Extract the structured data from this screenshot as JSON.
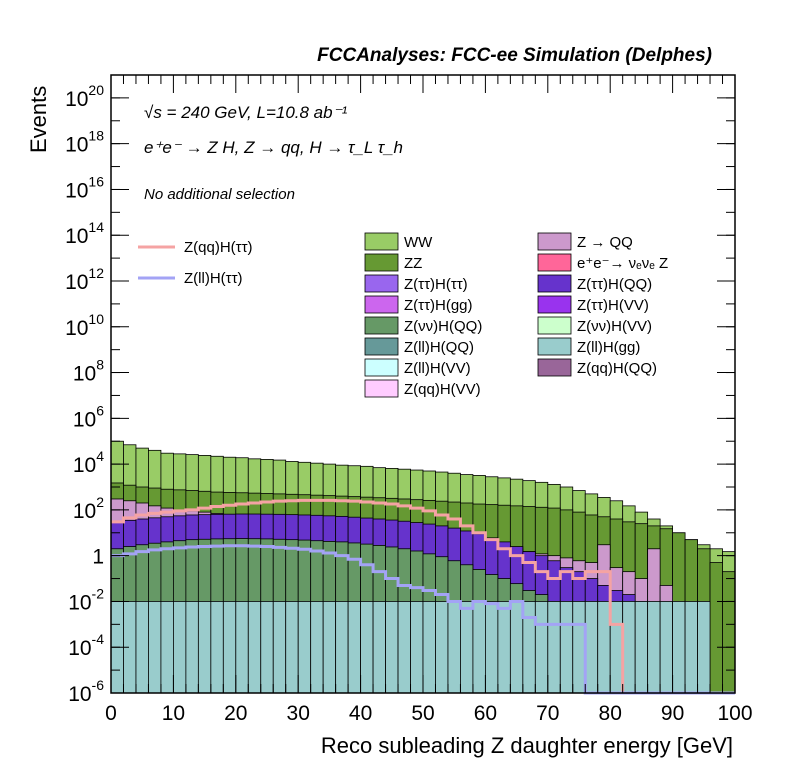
{
  "chart_data": {
    "type": "histogram-stacked",
    "title": "FCCAnalyses: FCC-ee Simulation (Delphes)",
    "annotations": {
      "energy": "√s = 240 GeV, L=10.8 ab⁻¹",
      "process": "e⁺e⁻ → Z H, Z → qq, H → τ_L τ_h",
      "selection": "No additional selection"
    },
    "xlabel": "Reco subleading Z daughter energy [GeV]",
    "ylabel": "Events",
    "xlim": [
      0,
      100
    ],
    "ylim": [
      1e-06,
      1e+21
    ],
    "yscale": "log",
    "x_ticks": [
      "0",
      "10",
      "20",
      "30",
      "40",
      "50",
      "60",
      "70",
      "80",
      "90",
      "100"
    ],
    "y_ticks": [
      {
        "base": "10",
        "exp": "-6"
      },
      {
        "base": "10",
        "exp": "-4"
      },
      {
        "base": "10",
        "exp": "-2"
      },
      {
        "base": "1",
        "exp": ""
      },
      {
        "base": "10",
        "exp": "2"
      },
      {
        "base": "10",
        "exp": "4"
      },
      {
        "base": "10",
        "exp": "6"
      },
      {
        "base": "10",
        "exp": "8"
      },
      {
        "base": "10",
        "exp": "10"
      },
      {
        "base": "10",
        "exp": "12"
      },
      {
        "base": "10",
        "exp": "14"
      },
      {
        "base": "10",
        "exp": "16"
      },
      {
        "base": "10",
        "exp": "18"
      },
      {
        "base": "10",
        "exp": "20"
      }
    ],
    "bin_width": 2,
    "stack_totals": {
      "WW": [
        100000,
        70000,
        50000,
        40000,
        30000,
        28000,
        26000,
        24000,
        22000,
        20000,
        19000,
        17000,
        16000,
        15000,
        13000,
        12000,
        11000,
        10000,
        9000,
        8500,
        8000,
        7000,
        6500,
        6000,
        5500,
        5000,
        4500,
        4000,
        3500,
        3200,
        2800,
        2500,
        2200,
        1900,
        1600,
        1300,
        1000,
        700,
        500,
        350,
        250,
        150,
        80,
        40,
        20,
        10,
        5,
        3,
        2,
        1.5
      ],
      "ZZ": [
        1500,
        1200,
        1000,
        900,
        800,
        750,
        700,
        650,
        600,
        580,
        560,
        540,
        520,
        500,
        480,
        460,
        440,
        420,
        400,
        380,
        360,
        340,
        320,
        300,
        280,
        260,
        240,
        220,
        200,
        180,
        170,
        160,
        150,
        140,
        130,
        120,
        100,
        80,
        60,
        50,
        40,
        30,
        25,
        20,
        15,
        10,
        5,
        2,
        0.5,
        0.2
      ],
      "Z → QQ": [
        300,
        250,
        200,
        150,
        120,
        100,
        90,
        80,
        70,
        60,
        55,
        50,
        45,
        40,
        38,
        35,
        32,
        30,
        28,
        25,
        22,
        20,
        18,
        15,
        12,
        10,
        8,
        6,
        5,
        4,
        3,
        2.5,
        2,
        1.5,
        1.2,
        1,
        0.8,
        0.6,
        0.5,
        3,
        0.3,
        0.2,
        0.1,
        2,
        0.05,
        0,
        0,
        0,
        0,
        0
      ],
      "Z(ττ)H(QQ)": [
        30,
        35,
        40,
        45,
        50,
        55,
        60,
        62,
        64,
        65,
        66,
        66,
        65,
        64,
        62,
        60,
        58,
        55,
        52,
        48,
        44,
        40,
        36,
        32,
        28,
        24,
        20,
        16,
        12,
        9,
        6,
        4,
        2.5,
        1.5,
        1,
        0.6,
        0.3,
        0.2,
        0.1,
        0.05,
        0.03,
        0.02,
        0.01,
        0.005,
        0,
        0,
        0,
        0,
        0,
        0
      ],
      "Z(νν)H(QQ)": [
        2,
        2.5,
        3,
        3.5,
        4,
        4.5,
        5,
        5.2,
        5.4,
        5.5,
        5.6,
        5.5,
        5.4,
        5.2,
        5,
        4.8,
        4.5,
        4.2,
        4,
        3.6,
        3.2,
        2.8,
        2.4,
        2,
        1.6,
        1.2,
        0.9,
        0.6,
        0.4,
        0.25,
        0.15,
        0.1,
        0.06,
        0.03,
        0.02,
        0.01,
        0.005,
        0,
        0,
        0,
        0,
        0,
        0,
        0,
        0,
        0,
        0,
        0,
        0,
        0
      ],
      "Z(ll)H(gg)": [
        0.01,
        0.01,
        0.01,
        0.01,
        0.01,
        0.01,
        0.01,
        0.01,
        0.01,
        0.01,
        0.01,
        0.01,
        0.01,
        0.01,
        0.01,
        0.01,
        0.01,
        0.01,
        0.01,
        0.01,
        0.01,
        0.01,
        0.01,
        0.01,
        0.01,
        0.01,
        0.01,
        0.01,
        0.01,
        0.01,
        0.01,
        0.01,
        0.01,
        0.01,
        0.01,
        0.01,
        0.01,
        0.01,
        0.01,
        0.01,
        0.01,
        0.01,
        0.01,
        0.01,
        0.01,
        0.01,
        0.01,
        0.01,
        0,
        0
      ]
    },
    "overlays": [
      {
        "name": "Z(qq)H(ττ)",
        "color": "#f5a3a3",
        "values": [
          30,
          45,
          60,
          70,
          80,
          90,
          100,
          120,
          140,
          160,
          180,
          200,
          220,
          240,
          250,
          260,
          260,
          260,
          250,
          240,
          220,
          200,
          180,
          150,
          120,
          90,
          60,
          40,
          20,
          10,
          5,
          2,
          1,
          0.5,
          0.2,
          0.1,
          0.2,
          0.1,
          0.2,
          0.2,
          0.001,
          0,
          0,
          0,
          0,
          0,
          0,
          0,
          0,
          0
        ]
      },
      {
        "name": "Z(ll)H(ττ)",
        "color": "#a3a3f5",
        "values": [
          1,
          1.2,
          1.5,
          1.8,
          2,
          2.2,
          2.4,
          2.5,
          2.6,
          2.7,
          2.7,
          2.6,
          2.5,
          2.3,
          2.1,
          1.9,
          1.6,
          1.3,
          1,
          0.7,
          0.4,
          0.2,
          0.1,
          0.05,
          0.04,
          0.03,
          0.02,
          0.01,
          0.005,
          0.01,
          0.008,
          0.005,
          0.01,
          0.002,
          0.001,
          0.001,
          0.001,
          0.001,
          0,
          0,
          0,
          0,
          0,
          0,
          0,
          0,
          0,
          0,
          0,
          0
        ]
      }
    ],
    "legend_left": [
      {
        "name": "Z(qq)H(ττ)",
        "color": "#f5a3a3",
        "style": "line"
      },
      {
        "name": "Z(ll)H(ττ)",
        "color": "#a3a3f5",
        "style": "line"
      }
    ],
    "legend_mid": [
      {
        "name": "WW",
        "color": "#99cc66"
      },
      {
        "name": "ZZ",
        "color": "#669933"
      },
      {
        "name": "Z(ττ)H(ττ)",
        "color": "#9966ee"
      },
      {
        "name": "Z(ττ)H(gg)",
        "color": "#cc66ee"
      },
      {
        "name": "Z(νν)H(QQ)",
        "color": "#669966"
      },
      {
        "name": "Z(ll)H(QQ)",
        "color": "#669999"
      },
      {
        "name": "Z(ll)H(VV)",
        "color": "#ccffff"
      },
      {
        "name": "Z(qq)H(VV)",
        "color": "#ffccff"
      }
    ],
    "legend_right": [
      {
        "name": "Z → QQ",
        "color": "#cc99cc"
      },
      {
        "name": "e⁺e⁻→ νₑνₑ Z",
        "color": "#ff6699"
      },
      {
        "name": "Z(ττ)H(QQ)",
        "color": "#6633cc"
      },
      {
        "name": "Z(ττ)H(VV)",
        "color": "#9933ee"
      },
      {
        "name": "Z(νν)H(VV)",
        "color": "#ccffcc"
      },
      {
        "name": "Z(ll)H(gg)",
        "color": "#99cccc"
      },
      {
        "name": "Z(qq)H(QQ)",
        "color": "#996699"
      }
    ],
    "legend_position": "top-right"
  }
}
